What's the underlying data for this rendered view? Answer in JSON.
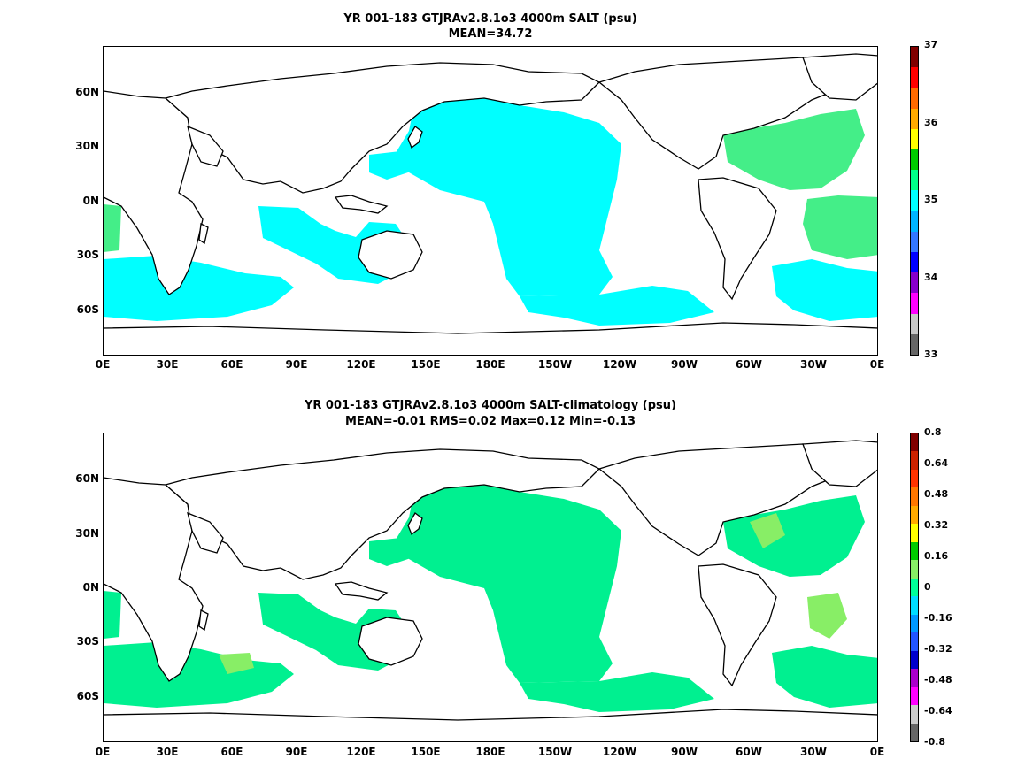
{
  "panels": [
    {
      "title_line1": "YR 001-183 GTJRAv2.8.1o3 4000m SALT (psu)",
      "title_line2": "MEAN=34.72",
      "colorbar": {
        "labels": [
          "37",
          "36",
          "35",
          "34",
          "33"
        ],
        "colors": [
          "#800000",
          "#ff0000",
          "#ff6a00",
          "#ffaa00",
          "#ffff00",
          "#00cc00",
          "#00ff88",
          "#00ffff",
          "#00b4ff",
          "#3377ff",
          "#0000ff",
          "#8800cc",
          "#ff00ff",
          "#c8c8c8",
          "#666666"
        ]
      },
      "fill_color": "#00ffff",
      "accent_color": "#44ee88"
    },
    {
      "title_line1": "YR 001-183 GTJRAv2.8.1o3 4000m SALT-climatology (psu)",
      "title_line2": "MEAN=-0.01   RMS=0.02   Max=0.12   Min=-0.13",
      "colorbar": {
        "labels": [
          "0.8",
          "0.64",
          "0.48",
          "0.32",
          "0.16",
          "0",
          "-0.16",
          "-0.32",
          "-0.48",
          "-0.64",
          "-0.8"
        ],
        "colors": [
          "#800000",
          "#cc2200",
          "#ff3300",
          "#ff7700",
          "#ffaa00",
          "#ffff00",
          "#00cc00",
          "#88ee66",
          "#00ff99",
          "#00ddff",
          "#0099ff",
          "#2255ff",
          "#0000cc",
          "#aa00cc",
          "#ff00ff",
          "#cccccc",
          "#666666"
        ]
      },
      "fill_color": "#00f090",
      "accent_color": "#88ee66"
    }
  ],
  "axes": {
    "y_labels": [
      "60N",
      "30N",
      "0N",
      "30S",
      "60S"
    ],
    "x_labels": [
      "0E",
      "30E",
      "60E",
      "90E",
      "120E",
      "150E",
      "180E",
      "150W",
      "120W",
      "90W",
      "60W",
      "30W",
      "0E"
    ]
  }
}
